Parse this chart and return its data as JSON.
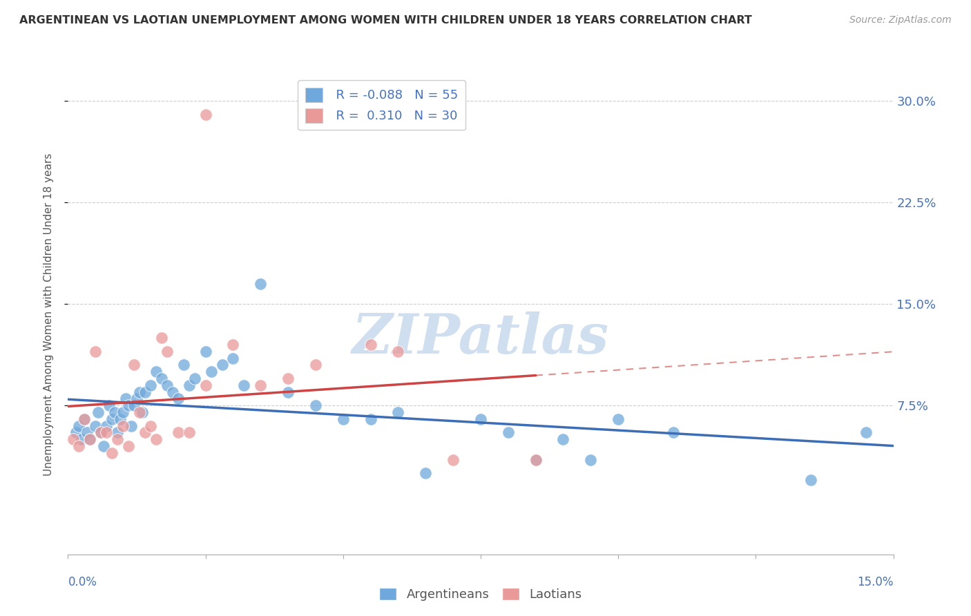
{
  "title": "ARGENTINEAN VS LAOTIAN UNEMPLOYMENT AMONG WOMEN WITH CHILDREN UNDER 18 YEARS CORRELATION CHART",
  "source": "Source: ZipAtlas.com",
  "ylabel": "Unemployment Among Women with Children Under 18 years",
  "xlim": [
    0.0,
    15.0
  ],
  "ylim": [
    -3.5,
    32.0
  ],
  "ytick_values": [
    7.5,
    15.0,
    22.5,
    30.0
  ],
  "legend_r_argentinean": "R = -0.088",
  "legend_n_argentinean": "N = 55",
  "legend_r_laotian": "R =  0.310",
  "legend_n_laotian": "N = 30",
  "color_argentinean": "#6fa8dc",
  "color_laotian": "#ea9999",
  "color_trend_argentinean": "#3d6eb5",
  "color_trend_laotian": "#cc4444",
  "watermark": "ZIPatlas",
  "watermark_color": "#d0dff0",
  "argentineans_x": [
    0.15,
    0.2,
    0.25,
    0.3,
    0.35,
    0.4,
    0.5,
    0.55,
    0.6,
    0.65,
    0.7,
    0.75,
    0.8,
    0.85,
    0.9,
    0.95,
    1.0,
    1.05,
    1.1,
    1.15,
    1.2,
    1.25,
    1.3,
    1.35,
    1.4,
    1.5,
    1.6,
    1.7,
    1.8,
    1.9,
    2.0,
    2.1,
    2.2,
    2.3,
    2.5,
    2.6,
    2.8,
    3.0,
    3.2,
    3.5,
    4.0,
    4.5,
    5.0,
    5.5,
    6.0,
    6.5,
    7.5,
    8.0,
    8.5,
    9.0,
    9.5,
    10.0,
    11.0,
    13.5,
    14.5
  ],
  "argentineans_y": [
    5.5,
    6.0,
    5.0,
    6.5,
    5.5,
    5.0,
    6.0,
    7.0,
    5.5,
    4.5,
    6.0,
    7.5,
    6.5,
    7.0,
    5.5,
    6.5,
    7.0,
    8.0,
    7.5,
    6.0,
    7.5,
    8.0,
    8.5,
    7.0,
    8.5,
    9.0,
    10.0,
    9.5,
    9.0,
    8.5,
    8.0,
    10.5,
    9.0,
    9.5,
    11.5,
    10.0,
    10.5,
    11.0,
    9.0,
    16.5,
    8.5,
    7.5,
    6.5,
    6.5,
    7.0,
    2.5,
    6.5,
    5.5,
    3.5,
    5.0,
    3.5,
    6.5,
    5.5,
    2.0,
    5.5
  ],
  "laotians_x": [
    0.1,
    0.2,
    0.3,
    0.4,
    0.5,
    0.6,
    0.7,
    0.8,
    0.9,
    1.0,
    1.1,
    1.2,
    1.3,
    1.4,
    1.5,
    1.6,
    1.7,
    1.8,
    2.0,
    2.2,
    2.5,
    3.0,
    3.5,
    4.0,
    4.5,
    5.5,
    6.0,
    7.0,
    8.5,
    2.5
  ],
  "laotians_y": [
    5.0,
    4.5,
    6.5,
    5.0,
    11.5,
    5.5,
    5.5,
    4.0,
    5.0,
    6.0,
    4.5,
    10.5,
    7.0,
    5.5,
    6.0,
    5.0,
    12.5,
    11.5,
    5.5,
    5.5,
    9.0,
    12.0,
    9.0,
    9.5,
    10.5,
    12.0,
    11.5,
    3.5,
    3.5,
    29.0
  ]
}
